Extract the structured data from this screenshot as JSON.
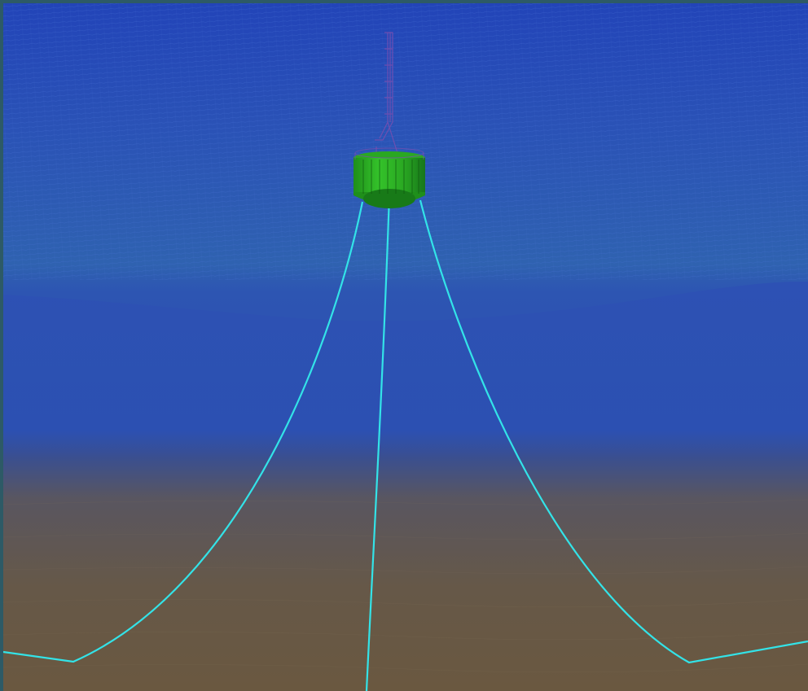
{
  "scene": {
    "colors": {
      "frame": "#2d5a66",
      "water_top": "#2348b5",
      "water_mid": "#2f5fb0",
      "water_band": "#2d52b0",
      "seabed_top": "#5a5558",
      "seabed_bottom": "#6b5740",
      "mooring_line": "#33e3e8",
      "buoy_body": "#27b21f",
      "buoy_dark": "#0f5a0f",
      "tower_outline": "#7a4fb0"
    },
    "objects": {
      "buoy": "floating-platform",
      "tower": "wireframe-tower",
      "mooring_lines": 3
    }
  }
}
